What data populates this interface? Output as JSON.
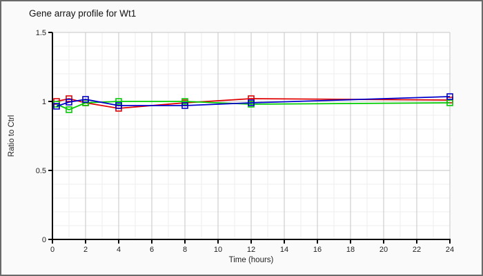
{
  "chart_data": {
    "type": "line",
    "title": "Gene array profile for Wt1",
    "xlabel": "Time (hours)",
    "ylabel": "Ratio to Ctrl",
    "xlim": [
      0,
      24
    ],
    "ylim": [
      0,
      1.5
    ],
    "x_ticks": [
      0,
      2,
      4,
      6,
      8,
      10,
      12,
      14,
      16,
      18,
      20,
      22,
      24
    ],
    "y_ticks": [
      0,
      0.5,
      1,
      1.5
    ],
    "y_tick_labels": [
      "0",
      "0.5",
      "1",
      "1.5"
    ],
    "grid": {
      "minor_x_step_hours": 1,
      "major_x_step_hours": 2,
      "minor_y_step": 0.1,
      "major_y_values": [
        0.5,
        1,
        1.5
      ]
    },
    "legend": "none",
    "marker": "open-square",
    "x": [
      0.25,
      1,
      2,
      4,
      8,
      12,
      24
    ],
    "series": [
      {
        "name": "red-series",
        "color": "#e00000",
        "values": [
          1.0,
          1.02,
          0.99,
          0.95,
          0.99,
          1.02,
          1.01
        ]
      },
      {
        "name": "green-series",
        "color": "#00cc00",
        "values": [
          0.98,
          0.94,
          0.99,
          1.0,
          1.0,
          0.98,
          0.99
        ]
      },
      {
        "name": "blue-series",
        "color": "#0000cc",
        "values": [
          0.965,
          0.995,
          1.015,
          0.97,
          0.97,
          0.99,
          1.035
        ]
      }
    ]
  }
}
